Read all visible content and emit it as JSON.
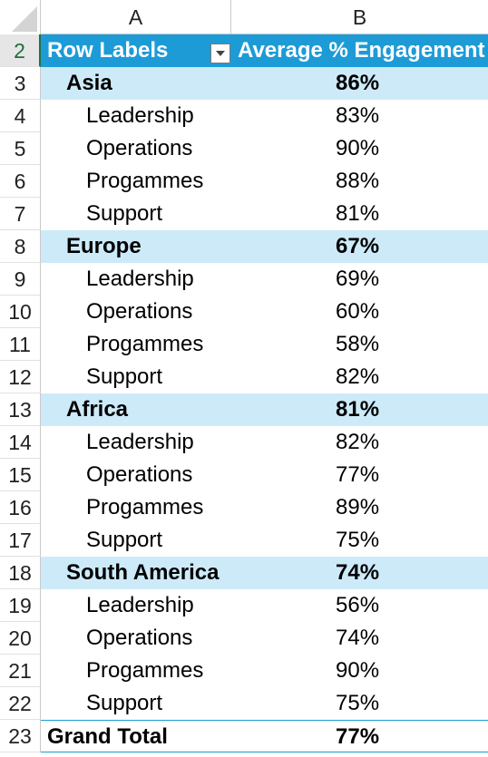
{
  "columns": {
    "a": "A",
    "b": "B"
  },
  "row_numbers": [
    "2",
    "3",
    "4",
    "5",
    "6",
    "7",
    "8",
    "9",
    "10",
    "11",
    "12",
    "13",
    "14",
    "15",
    "16",
    "17",
    "18",
    "19",
    "20",
    "21",
    "22",
    "23"
  ],
  "pivot": {
    "header": {
      "row_labels": "Row Labels",
      "value_header": "Average % Engagement"
    },
    "rows": [
      {
        "kind": "region",
        "label": "Asia",
        "value": "86%"
      },
      {
        "kind": "item",
        "label": "Leadership",
        "value": "83%"
      },
      {
        "kind": "item",
        "label": "Operations",
        "value": "90%"
      },
      {
        "kind": "item",
        "label": "Progammes",
        "value": "88%"
      },
      {
        "kind": "item",
        "label": "Support",
        "value": "81%"
      },
      {
        "kind": "region",
        "label": "Europe",
        "value": "67%"
      },
      {
        "kind": "item",
        "label": "Leadership",
        "value": "69%"
      },
      {
        "kind": "item",
        "label": "Operations",
        "value": "60%"
      },
      {
        "kind": "item",
        "label": "Progammes",
        "value": "58%"
      },
      {
        "kind": "item",
        "label": "Support",
        "value": "82%"
      },
      {
        "kind": "region",
        "label": "Africa",
        "value": "81%"
      },
      {
        "kind": "item",
        "label": "Leadership",
        "value": "82%"
      },
      {
        "kind": "item",
        "label": "Operations",
        "value": "77%"
      },
      {
        "kind": "item",
        "label": "Progammes",
        "value": "89%"
      },
      {
        "kind": "item",
        "label": "Support",
        "value": "75%"
      },
      {
        "kind": "region",
        "label": "South America",
        "value": "74%"
      },
      {
        "kind": "item",
        "label": "Leadership",
        "value": "56%"
      },
      {
        "kind": "item",
        "label": "Operations",
        "value": "74%"
      },
      {
        "kind": "item",
        "label": "Progammes",
        "value": "90%"
      },
      {
        "kind": "item",
        "label": "Support",
        "value": "75%"
      }
    ],
    "grand_total": {
      "label": "Grand Total",
      "value": "77%"
    }
  },
  "colors": {
    "header_bg": "#1d9bd7",
    "region_bg": "#cdeaf9",
    "active_row": "#1e6e3c"
  },
  "icons": {
    "filter": "filter-dropdown-icon",
    "select_all": "select-all-triangle-icon"
  }
}
